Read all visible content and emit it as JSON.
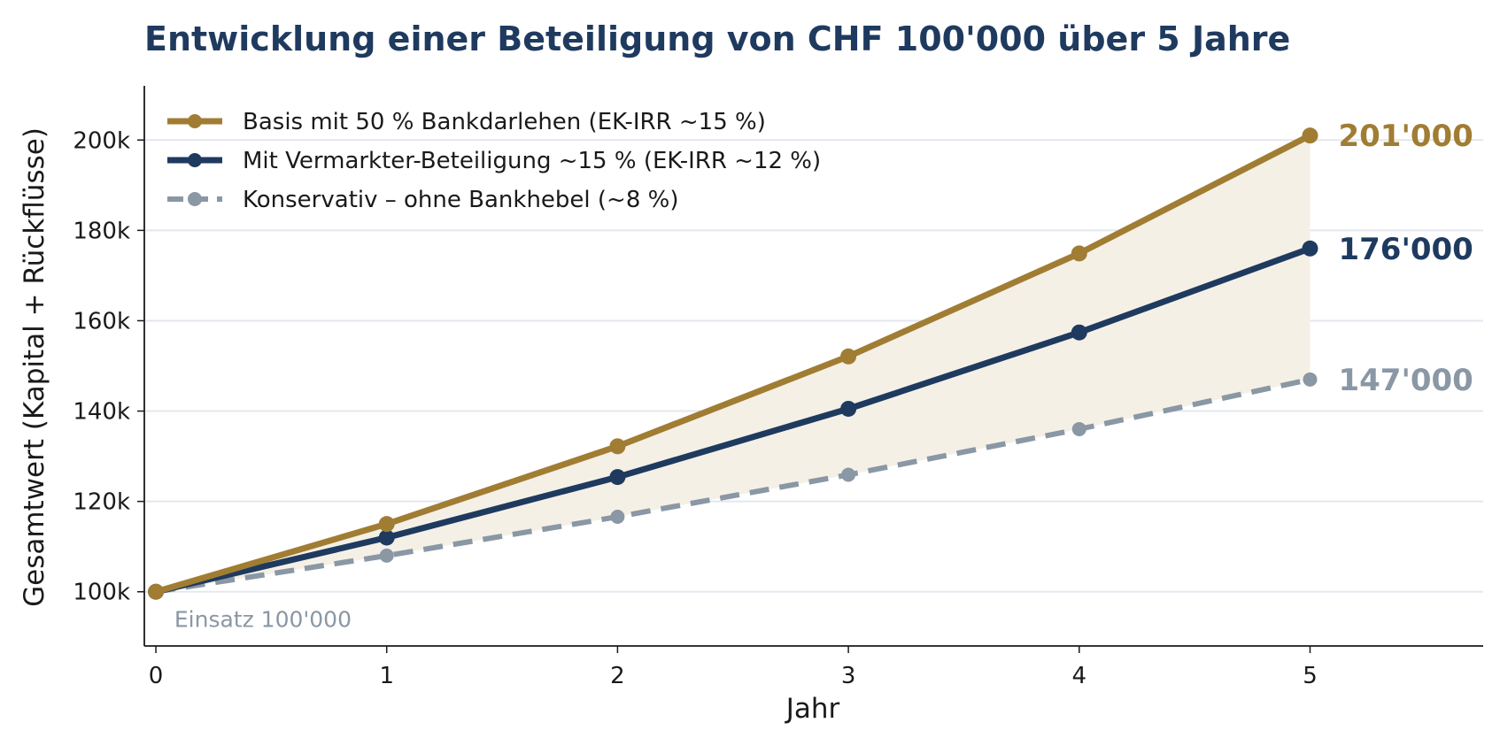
{
  "chart_data": {
    "type": "line",
    "title": "Entwicklung einer Beteiligung von CHF 100'000 über 5 Jahre",
    "xlabel": "Jahr",
    "ylabel": "Gesamtwert (Kapital + Rückflüsse)",
    "x": [
      0,
      1,
      2,
      3,
      4,
      5
    ],
    "xlim": [
      -0.05,
      5.75
    ],
    "ylim": [
      88000,
      212000
    ],
    "yticks": [
      100000,
      120000,
      140000,
      160000,
      180000,
      200000
    ],
    "ytick_labels": [
      "100k",
      "120k",
      "140k",
      "160k",
      "180k",
      "200k"
    ],
    "xtick_labels": [
      "0",
      "1",
      "2",
      "3",
      "4",
      "5"
    ],
    "grid": "horizontal",
    "legend_position": "top-left",
    "shaded_band": {
      "between": [
        "Basis mit 50 % Bankdarlehen (EK-IRR ~15 %)",
        "Konservativ – ohne Bankhebel (~8 %)"
      ],
      "color": "#f5f0e6"
    },
    "series": [
      {
        "name": "Basis mit 50 % Bankdarlehen (EK-IRR ~15 %)",
        "values": [
          100000,
          115000,
          132200,
          152100,
          174900,
          201000
        ],
        "color": "#a07d33",
        "dashed": false,
        "end_label": "201'000"
      },
      {
        "name": "Mit Vermarkter-Beteiligung ~15 % (EK-IRR ~12 %)",
        "values": [
          100000,
          112000,
          125400,
          140500,
          157400,
          176000
        ],
        "color": "#1f3a5f",
        "dashed": false,
        "end_label": "176'000"
      },
      {
        "name": "Konservativ – ohne Bankhebel (~8 %)",
        "values": [
          100000,
          108000,
          116600,
          125900,
          136000,
          147000
        ],
        "color": "#8a97a5",
        "dashed": true,
        "end_label": "147'000"
      }
    ],
    "annotations": [
      {
        "text": "Einsatz 100'000",
        "x": 0.08,
        "y": 94000
      }
    ]
  }
}
